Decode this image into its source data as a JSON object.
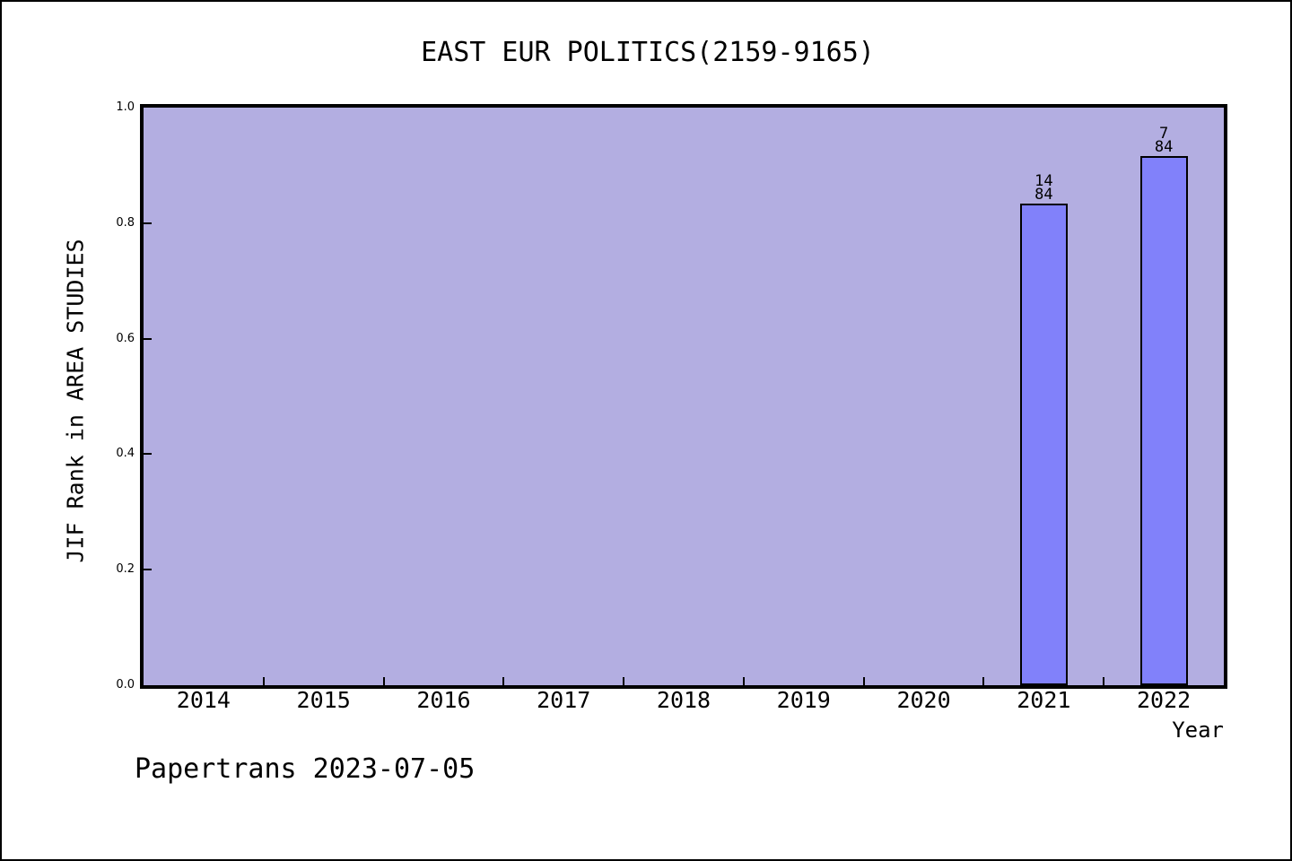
{
  "chart_data": {
    "type": "bar",
    "title": "EAST EUR POLITICS(2159-9165)",
    "xlabel": "Year",
    "ylabel": "JIF Rank in AREA STUDIES",
    "categories": [
      "2014",
      "2015",
      "2016",
      "2017",
      "2018",
      "2019",
      "2020",
      "2021",
      "2022"
    ],
    "series": [
      {
        "name": "JIF Rank in AREA STUDIES",
        "values": [
          null,
          null,
          null,
          null,
          null,
          null,
          null,
          0.8333,
          0.9167
        ]
      }
    ],
    "bars": [
      {
        "category": "2021",
        "value": 0.8333,
        "rank_label": "14",
        "total_label": "84"
      },
      {
        "category": "2022",
        "value": 0.9167,
        "rank_label": "7",
        "total_label": "84"
      }
    ],
    "ylim": [
      0.0,
      1.0
    ],
    "yticks": [
      {
        "value": 0.0,
        "label": "0.0"
      },
      {
        "value": 0.2,
        "label": "0.2"
      },
      {
        "value": 0.4,
        "label": "0.4"
      },
      {
        "value": 0.6,
        "label": "0.6"
      },
      {
        "value": 0.8,
        "label": "0.8"
      },
      {
        "value": 1.0,
        "label": "1.0"
      }
    ],
    "grid": false,
    "legend_position": "none",
    "colors": {
      "bar_fill": "#8181fa",
      "bar_border": "#000000",
      "plot_background": "#b3aee1",
      "frame": "#000000",
      "text": "#000000",
      "page_background": "#ffffff"
    }
  },
  "footer": {
    "text": "Papertrans 2023-07-05"
  }
}
